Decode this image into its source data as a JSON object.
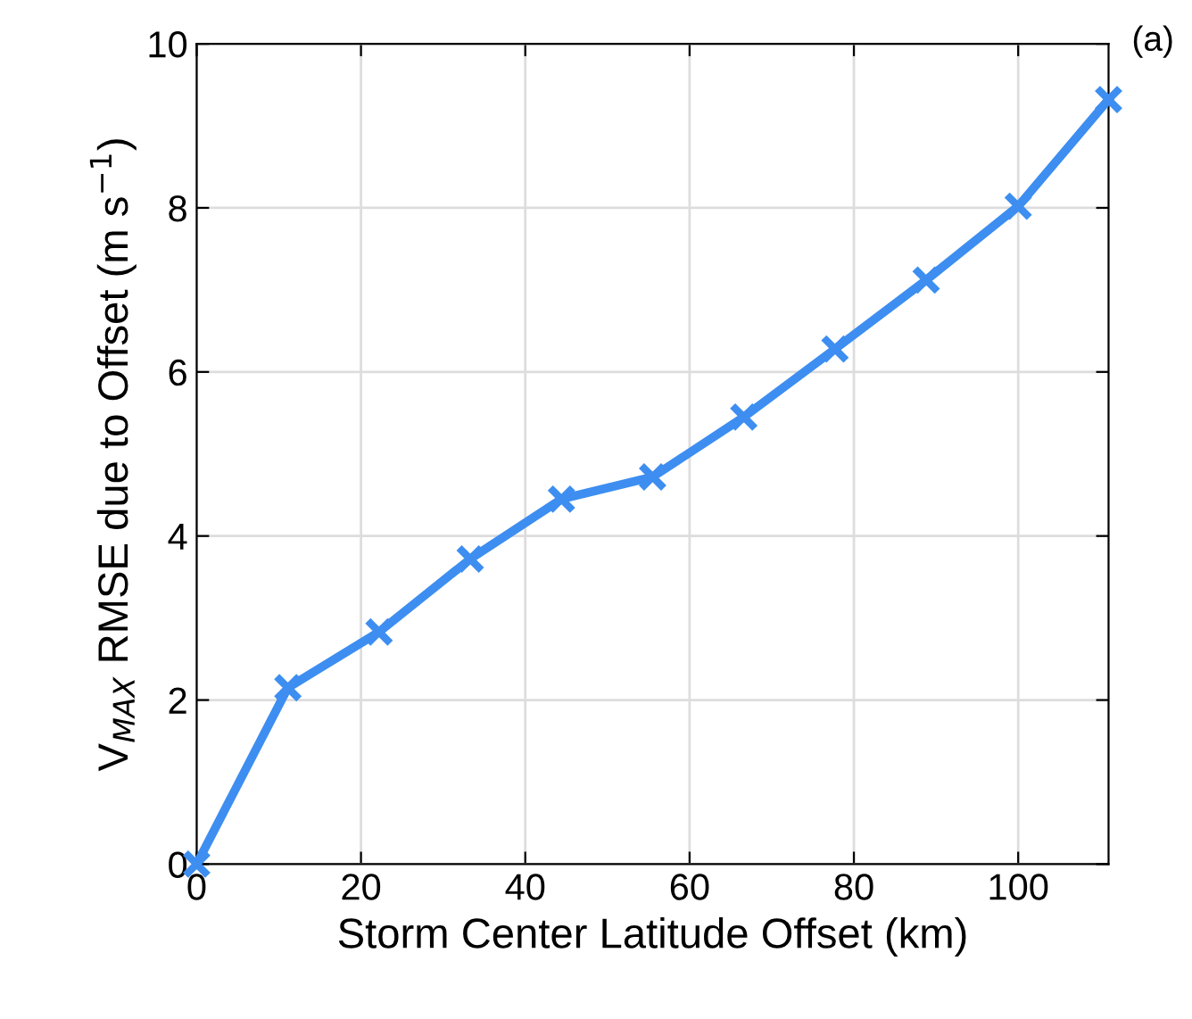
{
  "chart_data": {
    "type": "line",
    "xlabel": "Storm Center Latitude Offset (km)",
    "ylabel": "V$_{MAX}$ RMSE due to Offset (m s$^{−1}$)",
    "annotations": [
      "(a)"
    ],
    "x": [
      0,
      11.1,
      22.2,
      33.3,
      44.4,
      55.5,
      66.6,
      77.7,
      88.8,
      100,
      111
    ],
    "series": [
      {
        "color": "#3d8ef0",
        "values": [
          0,
          2.15,
          2.83,
          3.72,
          4.45,
          4.72,
          5.45,
          6.28,
          7.12,
          8.02,
          9.32
        ]
      }
    ],
    "xlim": [
      0,
      111
    ],
    "xticks": [
      0,
      20,
      40,
      60,
      80,
      100
    ],
    "ylim": [
      0,
      10
    ],
    "yticks": [
      0,
      2,
      4,
      6,
      8,
      10
    ],
    "grid": true,
    "marker": "cross",
    "line_style": "solid"
  }
}
